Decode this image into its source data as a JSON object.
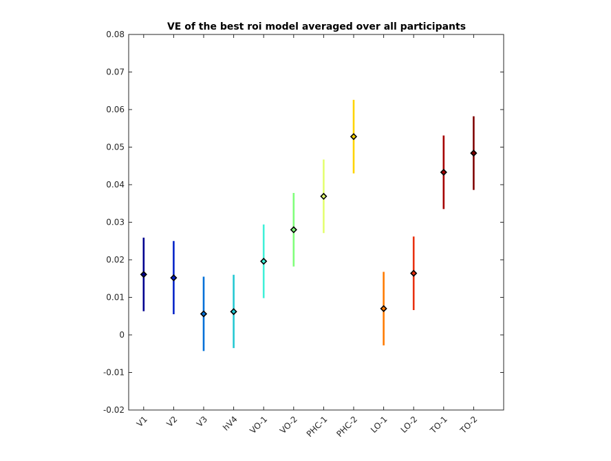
{
  "chart_data": {
    "type": "errorbar",
    "title": "VE of the best roi model averaged over all participants",
    "xlabel": "",
    "ylabel": "",
    "categories": [
      "V1",
      "V2",
      "V3",
      "hV4",
      "VO-1",
      "VO-2",
      "PHC-1",
      "PHC-2",
      "LO-1",
      "LO-2",
      "TO-1",
      "TO-2"
    ],
    "values": [
      0.0161,
      0.0152,
      0.0056,
      0.0062,
      0.0196,
      0.028,
      0.0369,
      0.0528,
      0.007,
      0.0164,
      0.0433,
      0.0484
    ],
    "lower": [
      0.0063,
      0.0055,
      -0.0043,
      -0.0035,
      0.0098,
      0.0182,
      0.0271,
      0.043,
      -0.0028,
      0.0066,
      0.0335,
      0.0386
    ],
    "upper": [
      0.0259,
      0.025,
      0.0155,
      0.016,
      0.0294,
      0.0378,
      0.0467,
      0.0626,
      0.0168,
      0.0262,
      0.0531,
      0.0582
    ],
    "colors": [
      "#00008f",
      "#0022c8",
      "#0070d8",
      "#22c8d2",
      "#40f0d8",
      "#80ff7a",
      "#e4ff70",
      "#ffd400",
      "#ff7a00",
      "#e83010",
      "#a40000",
      "#800000"
    ],
    "ylim": [
      -0.02,
      0.08
    ],
    "yticks": [
      "-0.02",
      "-0.01",
      "0",
      "0.01",
      "0.02",
      "0.03",
      "0.04",
      "0.05",
      "0.06",
      "0.07",
      "0.08"
    ],
    "grid": false,
    "legend": "none"
  }
}
